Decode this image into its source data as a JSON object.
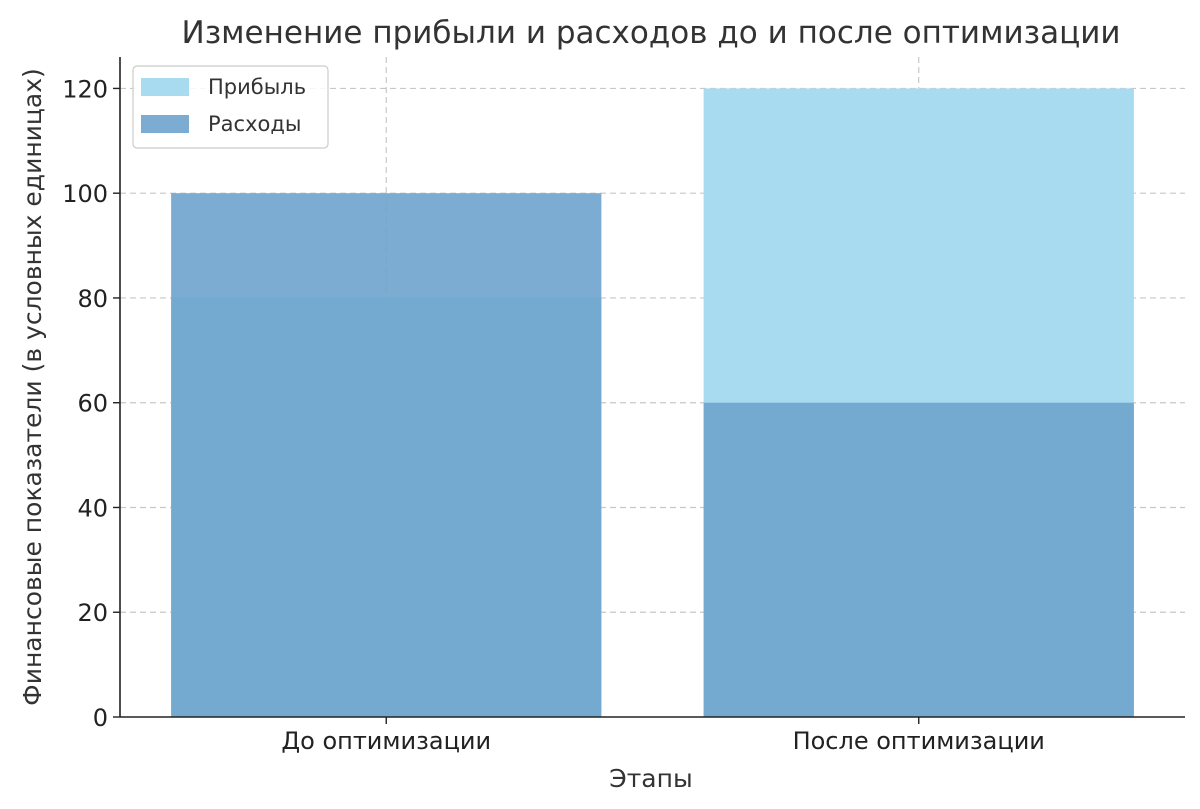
{
  "chart_data": {
    "type": "bar",
    "stacked": false,
    "overlaid": true,
    "title": "Изменение прибыли и расходов до и после оптимизации",
    "xlabel": "Этапы",
    "ylabel": "Финансовые показатели (в условных единицах)",
    "categories": [
      "До оптимизации",
      "После оптимизации"
    ],
    "series": [
      {
        "name": "Прибыль",
        "values": [
          80,
          120
        ],
        "color": "#a8dbef"
      },
      {
        "name": "Расходы",
        "values": [
          100,
          60
        ],
        "color": "#6ea3cc",
        "opacity": 0.9
      }
    ],
    "ylim": [
      0,
      126
    ],
    "yticks": [
      0,
      20,
      40,
      60,
      80,
      100,
      120
    ],
    "grid": true,
    "legend": "top-left"
  }
}
